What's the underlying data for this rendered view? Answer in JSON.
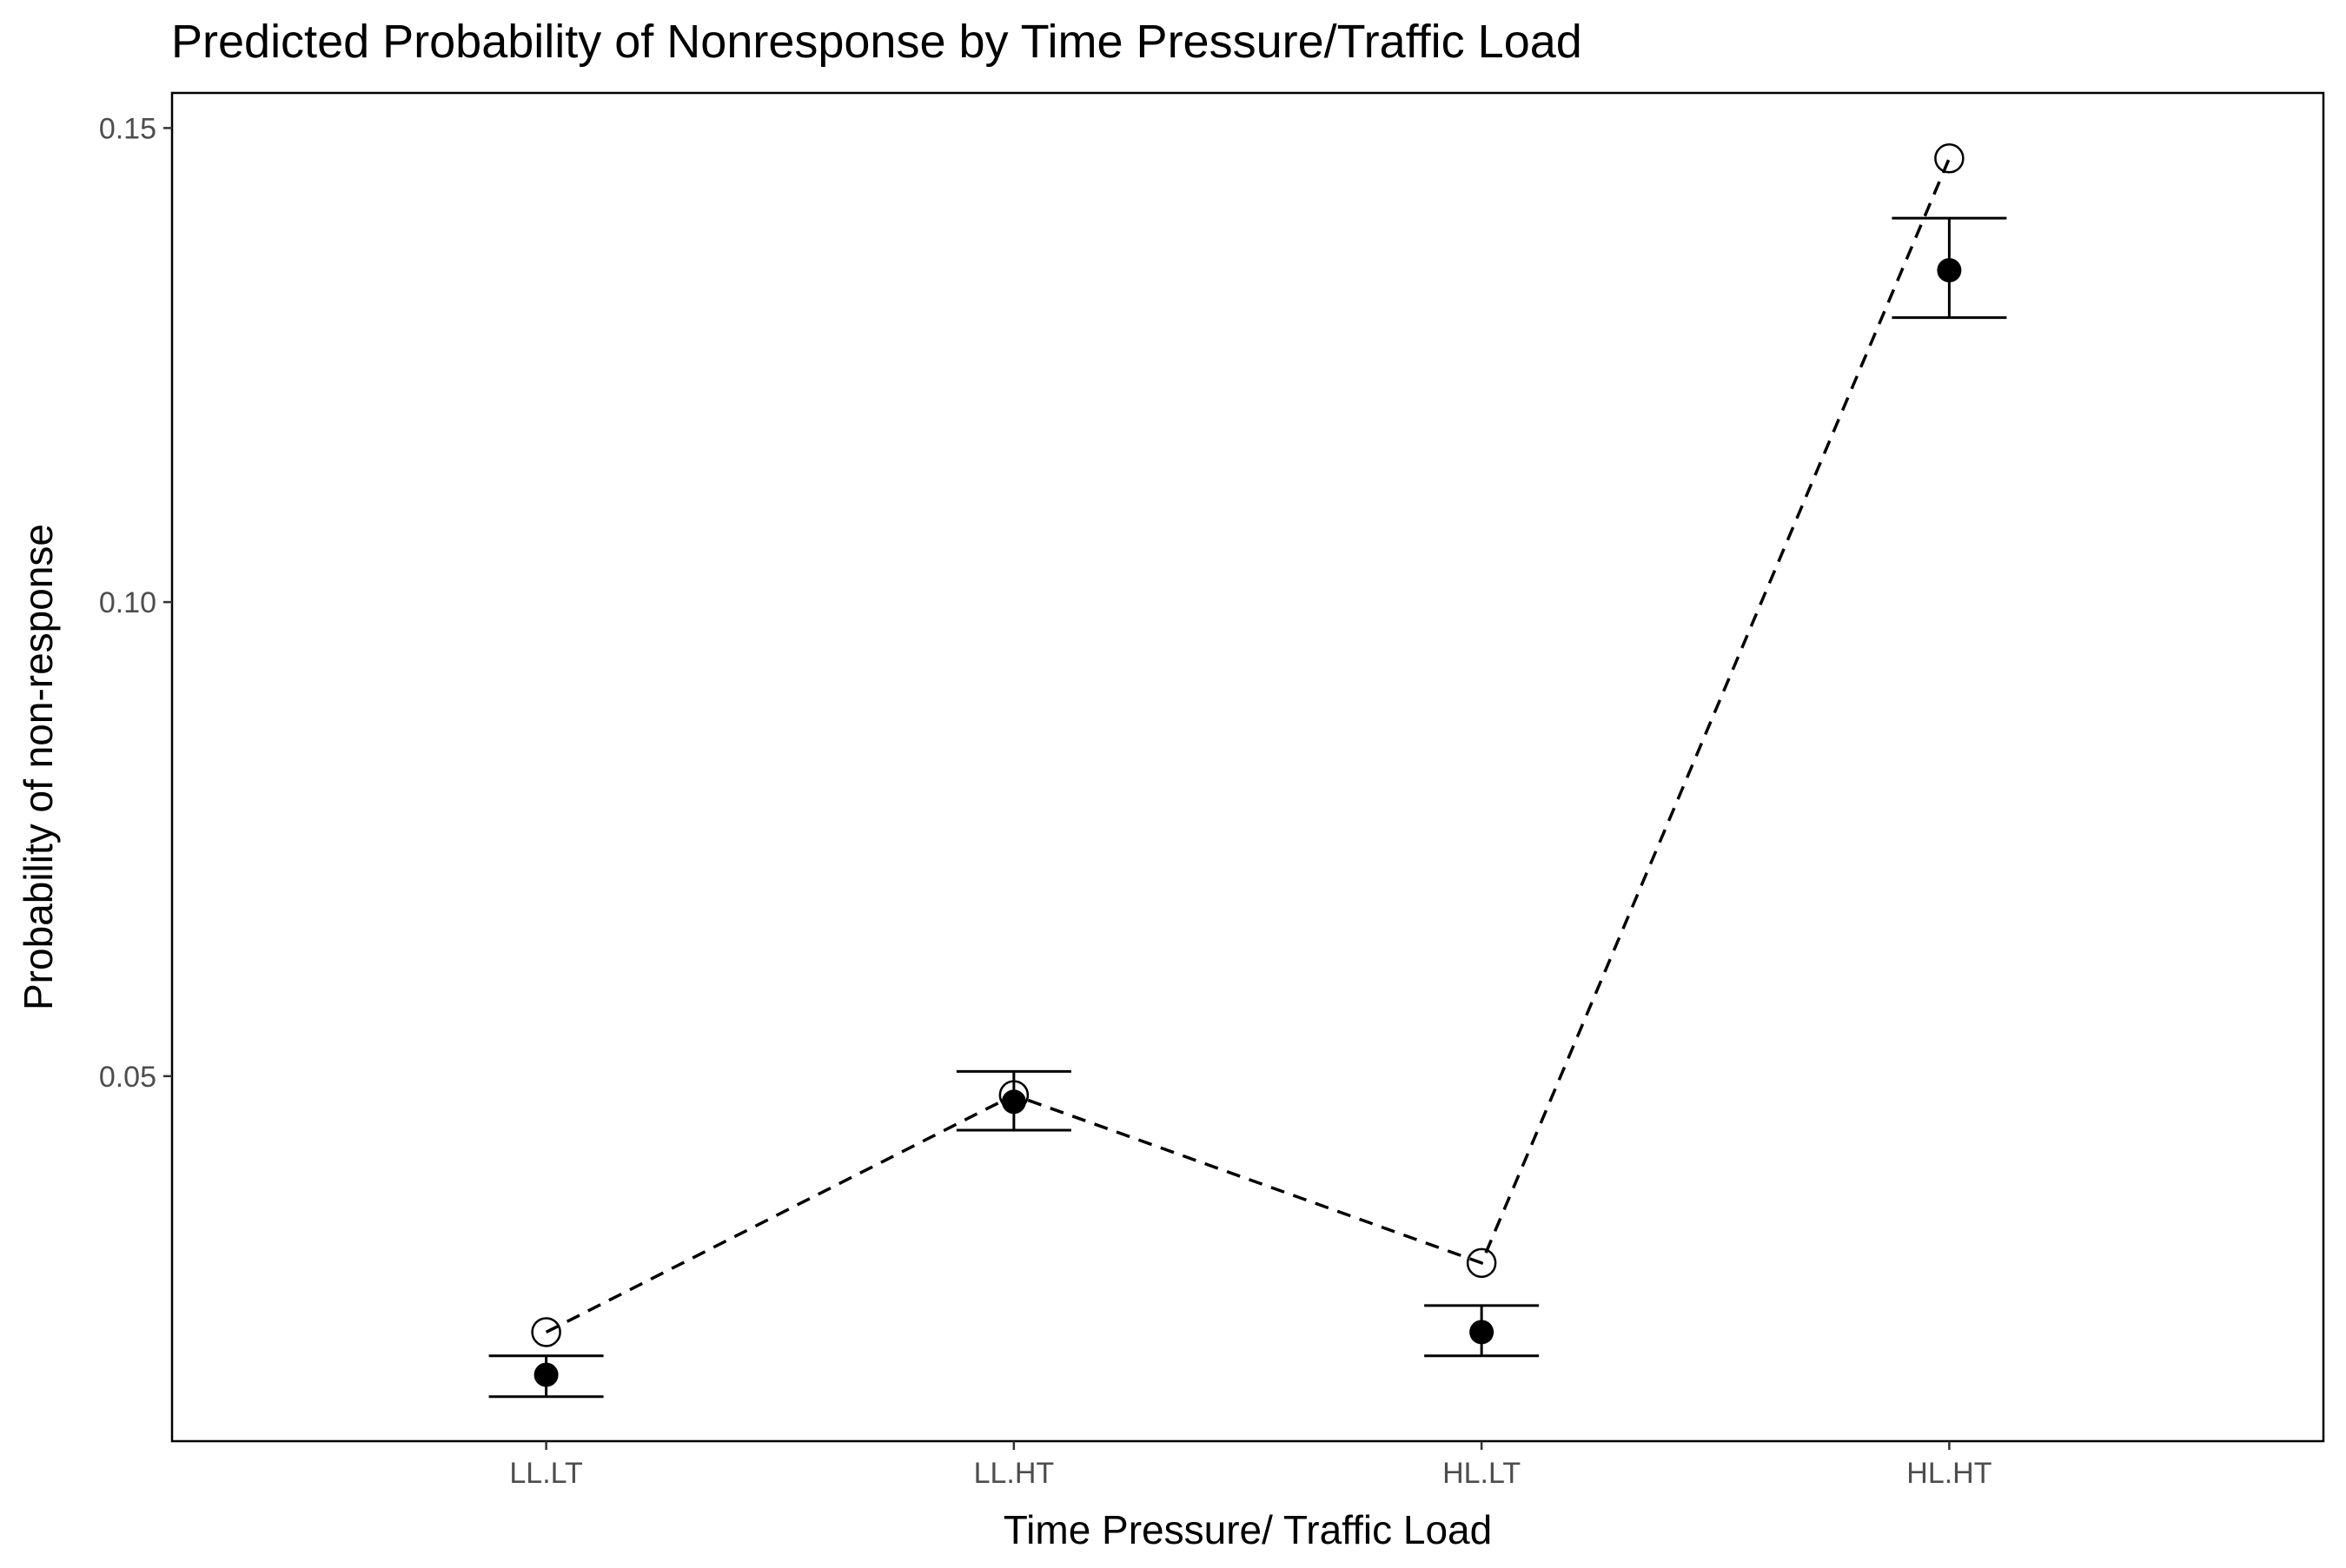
{
  "chart_data": {
    "type": "scatter",
    "title": "Predicted Probability of Nonresponse by Time Pressure/Traffic Load",
    "xlabel": "Time Pressure/ Traffic Load",
    "ylabel": "Probability of non-response",
    "categories": [
      "LL.LT",
      "LL.HT",
      "HL.LT",
      "HL.HT"
    ],
    "ylim": [
      0.0115,
      0.1537
    ],
    "yticks": [
      0.05,
      0.1,
      0.15
    ],
    "ytick_labels": [
      "0.05",
      "0.10",
      "0.15"
    ],
    "grid": false,
    "legend": "none",
    "series": [
      {
        "marker": "filled-circle",
        "values": [
          0.0185,
          0.0473,
          0.023,
          0.135
        ],
        "error_low": [
          0.0162,
          0.0443,
          0.0205,
          0.13
        ],
        "error_high": [
          0.0205,
          0.0505,
          0.0258,
          0.1405
        ]
      },
      {
        "marker": "open-circle",
        "line": "dashed",
        "values": [
          0.023,
          0.048,
          0.0303,
          0.1468
        ]
      }
    ],
    "colors": {
      "points": "#000000",
      "open_fill": "#ffffff",
      "tick_text": "#4d4d4d"
    }
  }
}
